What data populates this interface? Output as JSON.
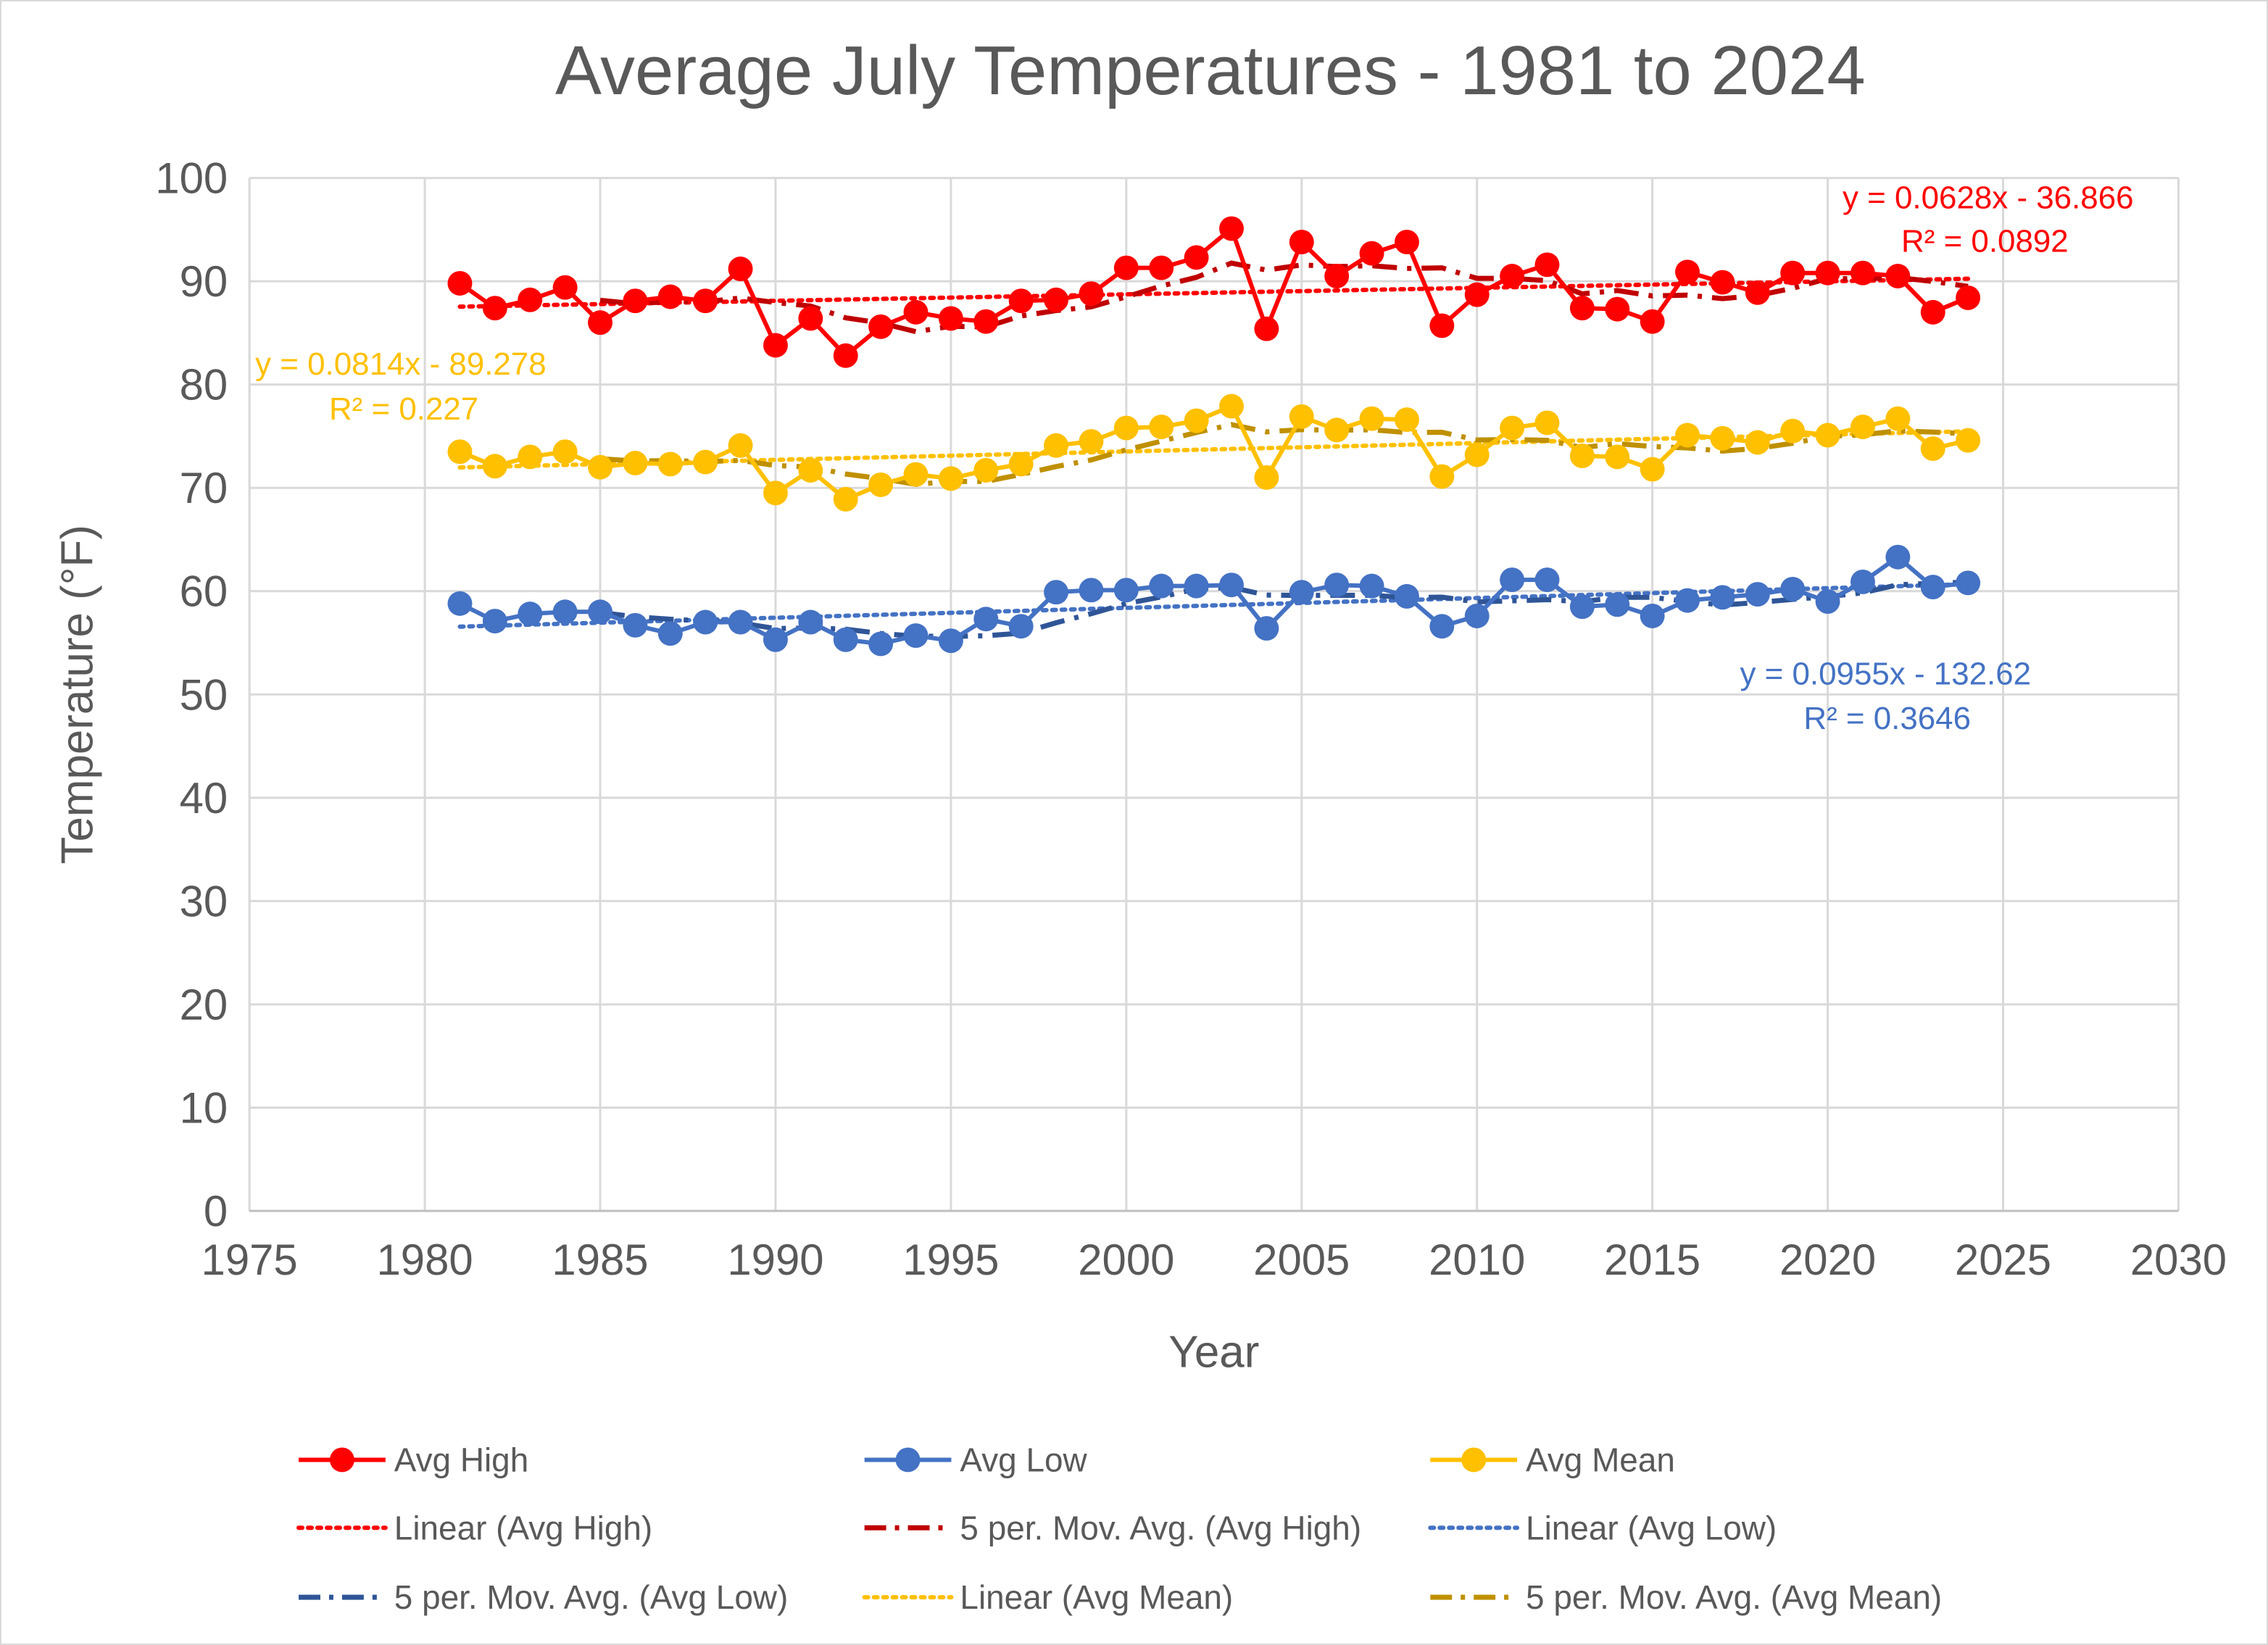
{
  "chart_data": {
    "type": "line",
    "title": "Average July Temperatures - 1981 to 2024",
    "xlabel": "Year",
    "ylabel": "Temperature (°F)",
    "xlim": [
      1975,
      2030
    ],
    "ylim": [
      0,
      100
    ],
    "x_ticks": [
      "1975",
      "1980",
      "1985",
      "1990",
      "1995",
      "2000",
      "2005",
      "2010",
      "2015",
      "2020",
      "2025",
      "2030"
    ],
    "y_ticks": [
      "0",
      "10",
      "20",
      "30",
      "40",
      "50",
      "60",
      "70",
      "80",
      "90",
      "100"
    ],
    "grid": "horizontal",
    "legend_position": "bottom",
    "x": [
      1981,
      1982,
      1983,
      1984,
      1985,
      1986,
      1987,
      1988,
      1989,
      1990,
      1991,
      1992,
      1993,
      1994,
      1995,
      1996,
      1997,
      1998,
      1999,
      2000,
      2001,
      2002,
      2003,
      2004,
      2005,
      2006,
      2007,
      2008,
      2009,
      2010,
      2011,
      2012,
      2013,
      2014,
      2015,
      2016,
      2017,
      2018,
      2019,
      2020,
      2021,
      2022,
      2023,
      2024
    ],
    "series": [
      {
        "name": "Avg High",
        "color": "#FF0000",
        "ma_color": "#C00000",
        "values": [
          89.8,
          87.4,
          88.2,
          89.4,
          86.0,
          88.1,
          88.5,
          88.1,
          91.2,
          83.8,
          86.4,
          82.8,
          85.6,
          87.0,
          86.4,
          86.1,
          88.1,
          88.2,
          88.8,
          91.3,
          91.3,
          92.3,
          95.1,
          85.4,
          93.8,
          90.5,
          92.7,
          93.8,
          85.7,
          88.7,
          90.5,
          91.6,
          87.4,
          87.3,
          86.1,
          90.9,
          89.9,
          88.9,
          90.8,
          90.8,
          90.8,
          90.5,
          87.0,
          88.4
        ],
        "trend": {
          "slope": 0.0628,
          "intercept": -36.866,
          "equation": "y = 0.0628x - 36.866",
          "r2": "R² = 0.0892"
        }
      },
      {
        "name": "Avg Low",
        "color": "#4472C4",
        "ma_color": "#2F5597",
        "values": [
          58.8,
          57.1,
          57.8,
          58.0,
          58.0,
          56.7,
          55.9,
          57.0,
          57.0,
          55.3,
          57.0,
          55.3,
          54.9,
          55.7,
          55.2,
          57.3,
          56.6,
          59.9,
          60.1,
          60.1,
          60.5,
          60.5,
          60.6,
          56.4,
          59.9,
          60.6,
          60.5,
          59.5,
          56.6,
          57.6,
          61.1,
          61.1,
          58.5,
          58.7,
          57.6,
          59.1,
          59.4,
          59.7,
          60.2,
          59.0,
          60.9,
          63.3,
          60.4,
          60.8
        ],
        "trend": {
          "slope": 0.0955,
          "intercept": -132.62,
          "equation": "y = 0.0955x - 132.62",
          "r2": "R² = 0.3646"
        }
      },
      {
        "name": "Avg Mean",
        "color": "#FFC000",
        "ma_color": "#BF9000",
        "values": [
          73.5,
          72.1,
          73.0,
          73.5,
          72.0,
          72.4,
          72.3,
          72.5,
          74.1,
          69.5,
          71.7,
          68.9,
          70.3,
          71.3,
          70.9,
          71.7,
          72.3,
          74.1,
          74.5,
          75.8,
          75.9,
          76.5,
          77.9,
          71.0,
          76.9,
          75.6,
          76.7,
          76.6,
          71.1,
          73.2,
          75.8,
          76.3,
          73.1,
          73.0,
          71.8,
          75.1,
          74.8,
          74.4,
          75.5,
          75.1,
          75.9,
          76.7,
          73.8,
          74.6
        ],
        "trend": {
          "slope": 0.0814,
          "intercept": -89.278,
          "equation": "y = 0.0814x - 89.278",
          "r2": "R² = 0.227"
        }
      }
    ],
    "moving_average_period": 5,
    "legend": [
      "Avg High",
      "Avg Low",
      "Avg Mean",
      "Linear (Avg High)",
      "5 per. Mov. Avg. (Avg High)",
      "Linear (Avg Low)",
      "5 per. Mov. Avg. (Avg Low)",
      "Linear (Avg Mean)",
      "5 per. Mov. Avg. (Avg Mean)"
    ]
  }
}
